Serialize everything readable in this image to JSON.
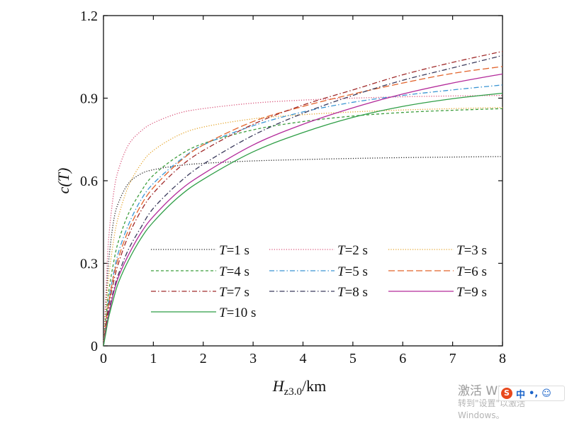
{
  "chart_data": {
    "type": "line",
    "ylabel": "c(T)",
    "xlabel_main": "H",
    "xlabel_sub": "z3.0",
    "xlabel_unit": "/km",
    "xlim": [
      0,
      8
    ],
    "ylim": [
      0,
      1.2
    ],
    "xticks": [
      "0",
      "1",
      "2",
      "3",
      "4",
      "5",
      "6",
      "7",
      "8"
    ],
    "yticks": [
      "0",
      "0.3",
      "0.6",
      "0.9",
      "1.2"
    ],
    "grid": false,
    "legend_position": "bottom-center inside plot",
    "series": [
      {
        "name": "T=1 s",
        "legend_var": "T",
        "legend_rest": "=1 s",
        "color": "#222222",
        "style": "dotted",
        "x": [
          0,
          0.05,
          0.1,
          0.2,
          0.3,
          0.5,
          0.75,
          1,
          1.5,
          2,
          3,
          4,
          5,
          6,
          7,
          8
        ],
        "y": [
          0,
          0.15,
          0.3,
          0.45,
          0.52,
          0.59,
          0.625,
          0.64,
          0.655,
          0.663,
          0.672,
          0.677,
          0.681,
          0.684,
          0.686,
          0.688
        ]
      },
      {
        "name": "T=2 s",
        "legend_var": "T",
        "legend_rest": "=2 s",
        "color": "#d9547a",
        "style": "dotted",
        "x": [
          0,
          0.05,
          0.1,
          0.2,
          0.3,
          0.5,
          0.75,
          1,
          1.5,
          2,
          3,
          4,
          5,
          6,
          7,
          8
        ],
        "y": [
          0,
          0.2,
          0.38,
          0.55,
          0.64,
          0.73,
          0.78,
          0.81,
          0.845,
          0.862,
          0.882,
          0.893,
          0.9,
          0.905,
          0.908,
          0.91
        ]
      },
      {
        "name": "T=3 s",
        "legend_var": "T",
        "legend_rest": "=3 s",
        "color": "#e5a52a",
        "style": "dotted",
        "x": [
          0,
          0.05,
          0.1,
          0.2,
          0.3,
          0.5,
          0.75,
          1,
          1.5,
          2,
          3,
          4,
          5,
          6,
          7,
          8
        ],
        "y": [
          0,
          0.12,
          0.24,
          0.38,
          0.47,
          0.58,
          0.66,
          0.71,
          0.765,
          0.795,
          0.825,
          0.84,
          0.85,
          0.857,
          0.862,
          0.866
        ]
      },
      {
        "name": "T=4 s",
        "legend_var": "T",
        "legend_rest": "=4 s",
        "color": "#3e9e3e",
        "style": "dashed",
        "x": [
          0,
          0.05,
          0.1,
          0.2,
          0.3,
          0.5,
          0.75,
          1,
          1.5,
          2,
          3,
          4,
          5,
          6,
          7,
          8
        ],
        "y": [
          0,
          0.1,
          0.19,
          0.3,
          0.38,
          0.48,
          0.56,
          0.62,
          0.69,
          0.735,
          0.785,
          0.815,
          0.835,
          0.848,
          0.856,
          0.862
        ]
      },
      {
        "name": "T=5 s",
        "legend_var": "T",
        "legend_rest": "=5 s",
        "color": "#3a95d3",
        "style": "dashdot",
        "x": [
          0,
          0.05,
          0.1,
          0.2,
          0.3,
          0.5,
          0.75,
          1,
          1.5,
          2,
          3,
          4,
          5,
          6,
          7,
          8
        ],
        "y": [
          0,
          0.08,
          0.16,
          0.26,
          0.34,
          0.44,
          0.53,
          0.59,
          0.67,
          0.73,
          0.8,
          0.85,
          0.885,
          0.91,
          0.93,
          0.948
        ]
      },
      {
        "name": "T=6 s",
        "legend_var": "T",
        "legend_rest": "=6 s",
        "color": "#e2632b",
        "style": "longdash",
        "x": [
          0,
          0.05,
          0.1,
          0.2,
          0.3,
          0.5,
          0.75,
          1,
          1.5,
          2,
          3,
          4,
          5,
          6,
          7,
          8
        ],
        "y": [
          0,
          0.08,
          0.15,
          0.25,
          0.32,
          0.42,
          0.51,
          0.575,
          0.665,
          0.73,
          0.815,
          0.87,
          0.915,
          0.955,
          0.99,
          1.015
        ]
      },
      {
        "name": "T=7 s",
        "legend_var": "T",
        "legend_rest": "=7 s",
        "color": "#a02a2a",
        "style": "dashdot",
        "x": [
          0,
          0.05,
          0.1,
          0.2,
          0.3,
          0.5,
          0.75,
          1,
          1.5,
          2,
          3,
          4,
          5,
          6,
          7,
          8
        ],
        "y": [
          0,
          0.07,
          0.14,
          0.23,
          0.3,
          0.4,
          0.49,
          0.555,
          0.645,
          0.71,
          0.805,
          0.875,
          0.93,
          0.985,
          1.03,
          1.07
        ]
      },
      {
        "name": "T=8 s",
        "legend_var": "T",
        "legend_rest": "=8 s",
        "color": "#3a3a5c",
        "style": "dashdot",
        "x": [
          0,
          0.05,
          0.1,
          0.2,
          0.3,
          0.5,
          0.75,
          1,
          1.5,
          2,
          3,
          4,
          5,
          6,
          7,
          8
        ],
        "y": [
          0,
          0.06,
          0.12,
          0.2,
          0.26,
          0.35,
          0.43,
          0.5,
          0.59,
          0.66,
          0.765,
          0.845,
          0.91,
          0.965,
          1.01,
          1.055
        ]
      },
      {
        "name": "T=9 s",
        "legend_var": "T",
        "legend_rest": "=9 s",
        "color": "#b32a9a",
        "style": "solid",
        "x": [
          0,
          0.05,
          0.1,
          0.2,
          0.3,
          0.5,
          0.75,
          1,
          1.5,
          2,
          3,
          4,
          5,
          6,
          7,
          8
        ],
        "y": [
          0,
          0.06,
          0.11,
          0.19,
          0.25,
          0.33,
          0.41,
          0.47,
          0.56,
          0.625,
          0.73,
          0.805,
          0.865,
          0.915,
          0.955,
          0.988
        ]
      },
      {
        "name": "T=10 s",
        "legend_var": "T",
        "legend_rest": "=10 s",
        "color": "#2e9e46",
        "style": "solid",
        "x": [
          0,
          0.05,
          0.1,
          0.2,
          0.3,
          0.5,
          0.75,
          1,
          1.5,
          2,
          3,
          4,
          5,
          6,
          7,
          8
        ],
        "y": [
          0,
          0.05,
          0.1,
          0.17,
          0.23,
          0.31,
          0.39,
          0.45,
          0.54,
          0.605,
          0.705,
          0.775,
          0.83,
          0.87,
          0.898,
          0.918
        ]
      }
    ]
  },
  "watermark": {
    "activate": "激活 Windows",
    "sub": "转到\"设置\"以激活 Windows。"
  },
  "ime": {
    "logo": "S",
    "lang": "中",
    "punct": "•,",
    "emoji": "☺"
  }
}
